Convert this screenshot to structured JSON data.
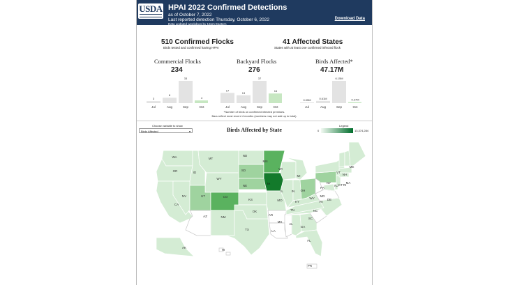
{
  "header": {
    "logo": "USDA",
    "title": "HPAI 2022 Confirmed Detections",
    "as_of": "as of October 7, 2022",
    "last_reported": "Last reported detection Thursday, October 6, 2022",
    "updated": "Data updated weekdays by 12pm Eastern",
    "download": "Download Data"
  },
  "summary": {
    "flocks_title": "510 Confirmed Flocks",
    "flocks_sub": "Birds tested and confirmed having HPAI",
    "states_title": "41 Affected States",
    "states_sub": "States with at least one confirmed infected flock"
  },
  "cards": [
    {
      "title": "Commercial Flocks",
      "value": "234",
      "months": [
        "Jul",
        "Aug",
        "Sep",
        "Oct"
      ],
      "values": [
        3,
        8,
        33,
        4
      ],
      "labels": [
        "3",
        "8",
        "33",
        "4"
      ]
    },
    {
      "title": "Backyard Flocks",
      "value": "276",
      "months": [
        "Jul",
        "Aug",
        "Sep",
        "Oct"
      ],
      "values": [
        17,
        13,
        37,
        16
      ],
      "labels": [
        "17",
        "13",
        "37",
        "16"
      ]
    },
    {
      "title": "Birds Affected*",
      "value": "47.17M",
      "months": [
        "Jul",
        "Aug",
        "Sep",
        "Oct"
      ],
      "values": [
        0.05,
        0.61,
        6.15,
        0.27
      ],
      "labels": [
        "0.05M",
        "0.61M",
        "6.15M",
        "0.27M"
      ]
    }
  ],
  "footnote": {
    "line1": "*Number of birds on confirmed infected premises.",
    "line2": "Bars reflect most recent 4 months (numbers may not add up to total)."
  },
  "map": {
    "select_label": "Choose variable to show",
    "select_value": "Birds Affected",
    "title": "Birds Affected by State",
    "legend_label": "Legend",
    "legend_min": "0",
    "legend_max": "13,374,284",
    "states": [
      {
        "abbr": "WA",
        "shade": 1
      },
      {
        "abbr": "OR",
        "shade": 1
      },
      {
        "abbr": "ID",
        "shade": 1
      },
      {
        "abbr": "MT",
        "shade": 1
      },
      {
        "abbr": "WY",
        "shade": 1
      },
      {
        "abbr": "ND",
        "shade": 1
      },
      {
        "abbr": "SD",
        "shade": 2
      },
      {
        "abbr": "MN",
        "shade": 3
      },
      {
        "abbr": "WI",
        "shade": 1
      },
      {
        "abbr": "MI",
        "shade": 1
      },
      {
        "abbr": "CA",
        "shade": 1
      },
      {
        "abbr": "NV",
        "shade": 1
      },
      {
        "abbr": "UT",
        "shade": 2
      },
      {
        "abbr": "CO",
        "shade": 3
      },
      {
        "abbr": "NE",
        "shade": 2
      },
      {
        "abbr": "IA",
        "shade": 5
      },
      {
        "abbr": "IL",
        "shade": 1
      },
      {
        "abbr": "IN",
        "shade": 1
      },
      {
        "abbr": "OH",
        "shade": 2
      },
      {
        "abbr": "PA",
        "shade": 2
      },
      {
        "abbr": "NY",
        "shade": 1
      },
      {
        "abbr": "AZ",
        "shade": 0
      },
      {
        "abbr": "NM",
        "shade": 1
      },
      {
        "abbr": "KS",
        "shade": 1
      },
      {
        "abbr": "MO",
        "shade": 1
      },
      {
        "abbr": "KY",
        "shade": 1
      },
      {
        "abbr": "WV",
        "shade": 0
      },
      {
        "abbr": "VA",
        "shade": 0
      },
      {
        "abbr": "MD",
        "shade": 1
      },
      {
        "abbr": "DE",
        "shade": 1
      },
      {
        "abbr": "NJ",
        "shade": 1
      },
      {
        "abbr": "CT",
        "shade": 1
      },
      {
        "abbr": "RI",
        "shade": 1
      },
      {
        "abbr": "MA",
        "shade": 1
      },
      {
        "abbr": "VT",
        "shade": 1
      },
      {
        "abbr": "NH",
        "shade": 1
      },
      {
        "abbr": "ME",
        "shade": 1
      },
      {
        "abbr": "TX",
        "shade": 1
      },
      {
        "abbr": "OK",
        "shade": 1
      },
      {
        "abbr": "AR",
        "shade": 0
      },
      {
        "abbr": "LA",
        "shade": 0
      },
      {
        "abbr": "MS",
        "shade": 0
      },
      {
        "abbr": "AL",
        "shade": 1
      },
      {
        "abbr": "TN",
        "shade": 1
      },
      {
        "abbr": "GA",
        "shade": 1
      },
      {
        "abbr": "SC",
        "shade": 0
      },
      {
        "abbr": "NC",
        "shade": 1
      },
      {
        "abbr": "FL",
        "shade": 1
      },
      {
        "abbr": "AK",
        "shade": 1
      },
      {
        "abbr": "HI",
        "shade": 0
      },
      {
        "abbr": "PR",
        "shade": 0
      }
    ],
    "shade_colors": [
      "#ffffff",
      "#d4ecd4",
      "#9fd39f",
      "#5ab25f",
      "#2f8f3f",
      "#137a2b"
    ]
  }
}
